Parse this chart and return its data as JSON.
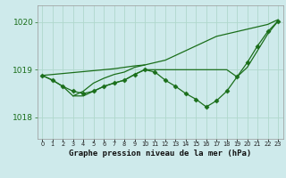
{
  "title": "Graphe pression niveau de la mer (hPa)",
  "bg_color": "#ceeaeb",
  "grid_color": "#b0d8cc",
  "line_color": "#1a6e1a",
  "marker_color": "#1a6e1a",
  "text_color": "#1a6e1a",
  "xlim": [
    -0.5,
    23.5
  ],
  "ylim": [
    1017.55,
    1020.35
  ],
  "yticks": [
    1018,
    1019,
    1020
  ],
  "series": [
    {
      "x": [
        0,
        1,
        2,
        3,
        4,
        5,
        6,
        7,
        8,
        9,
        10,
        11,
        12,
        13,
        14,
        15,
        16,
        17,
        18,
        19,
        20,
        21,
        22,
        23
      ],
      "y": [
        1018.88,
        1018.9,
        1018.92,
        1018.94,
        1018.96,
        1018.98,
        1019.0,
        1019.02,
        1019.05,
        1019.08,
        1019.1,
        1019.15,
        1019.2,
        1019.3,
        1019.4,
        1019.5,
        1019.6,
        1019.7,
        1019.75,
        1019.8,
        1019.85,
        1019.9,
        1019.95,
        1020.05
      ],
      "has_markers": false
    },
    {
      "x": [
        0,
        1,
        2,
        3,
        4,
        5,
        6,
        7,
        8,
        9,
        10,
        11,
        12,
        13,
        14,
        15,
        16,
        17,
        18,
        19,
        20,
        21,
        22,
        23
      ],
      "y": [
        1018.88,
        1018.78,
        1018.65,
        1018.55,
        1018.5,
        1018.55,
        1018.65,
        1018.72,
        1018.78,
        1018.9,
        1019.0,
        1018.95,
        1018.78,
        1018.65,
        1018.5,
        1018.38,
        1018.22,
        1018.35,
        1018.55,
        1018.85,
        1019.15,
        1019.5,
        1019.8,
        1020.02
      ],
      "has_markers": true
    },
    {
      "x": [
        0,
        1,
        2,
        3,
        4,
        5,
        6,
        7,
        8,
        9,
        10,
        11,
        12,
        13,
        14,
        15,
        16,
        17,
        18,
        19,
        20,
        21,
        22,
        23
      ],
      "y": [
        1018.88,
        1018.78,
        1018.65,
        1018.45,
        1018.45,
        1018.55,
        1018.65,
        1018.72,
        1018.78,
        1018.9,
        1019.0,
        1019.0,
        1019.0,
        1019.0,
        1019.0,
        1019.0,
        1019.0,
        1019.0,
        1019.0,
        1018.85,
        1019.05,
        1019.4,
        1019.75,
        1020.02
      ],
      "has_markers": false
    },
    {
      "x": [
        3,
        4,
        5,
        6,
        7,
        8,
        9,
        10
      ],
      "y": [
        1018.45,
        1018.55,
        1018.72,
        1018.82,
        1018.9,
        1018.95,
        1019.05,
        1019.1
      ],
      "has_markers": false
    }
  ]
}
